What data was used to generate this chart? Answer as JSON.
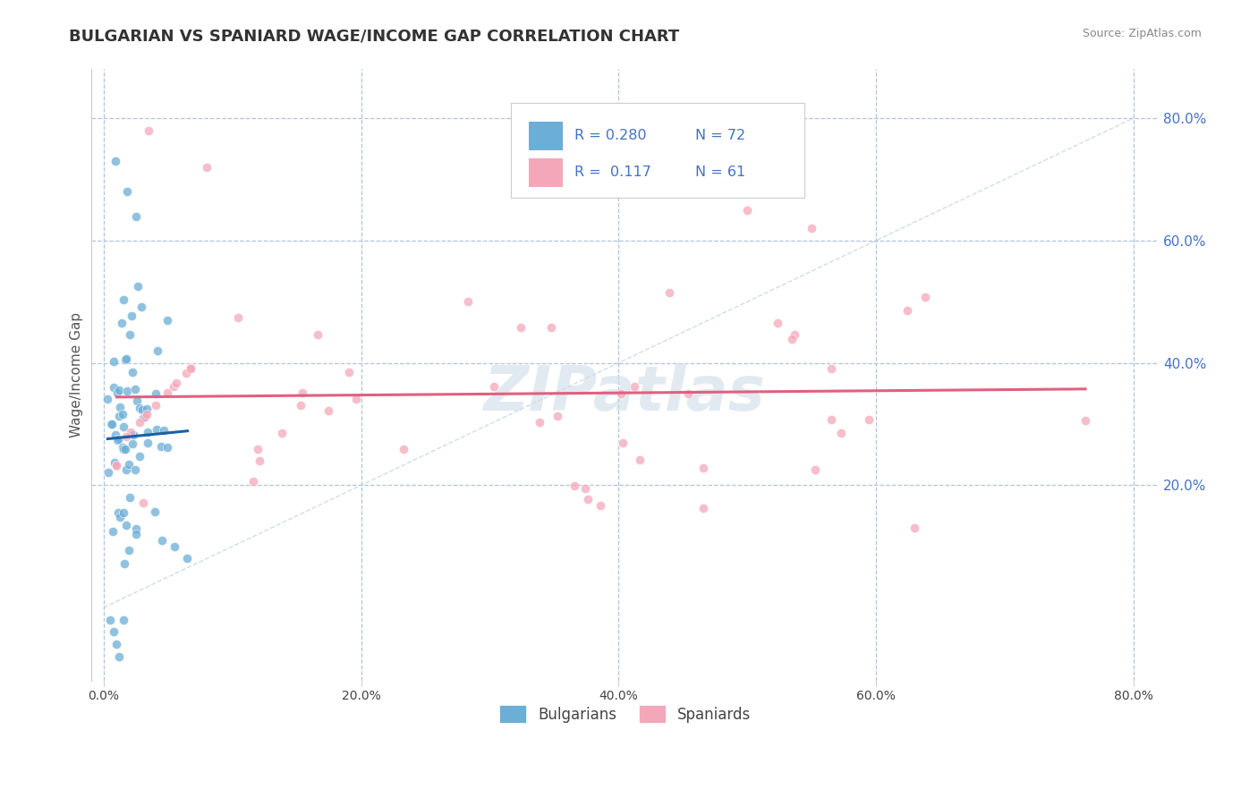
{
  "title": "BULGARIAN VS SPANIARD WAGE/INCOME GAP CORRELATION CHART",
  "source": "Source: ZipAtlas.com",
  "ylabel": "Wage/Income Gap",
  "xlim": [
    -0.01,
    0.82
  ],
  "ylim": [
    -0.12,
    0.88
  ],
  "xticks": [
    0.0,
    0.2,
    0.4,
    0.6,
    0.8
  ],
  "xtick_labels": [
    "0.0%",
    "20.0%",
    "40.0%",
    "60.0%",
    "80.0%"
  ],
  "yticks": [
    0.2,
    0.4,
    0.6,
    0.8
  ],
  "ytick_labels": [
    "20.0%",
    "40.0%",
    "60.0%",
    "80.0%"
  ],
  "bg_color": "#ffffff",
  "grid_color": "#b0c4de",
  "blue_color": "#6baed6",
  "pink_color": "#f4a7b9",
  "blue_line_color": "#1a5fa8",
  "pink_line_color": "#e06080",
  "series1_label": "Bulgarians",
  "series2_label": "Spaniards",
  "title_fontsize": 13,
  "label_fontsize": 11,
  "tick_fontsize": 10,
  "legend_fontsize": 12,
  "watermark_color": "#d0dce8"
}
